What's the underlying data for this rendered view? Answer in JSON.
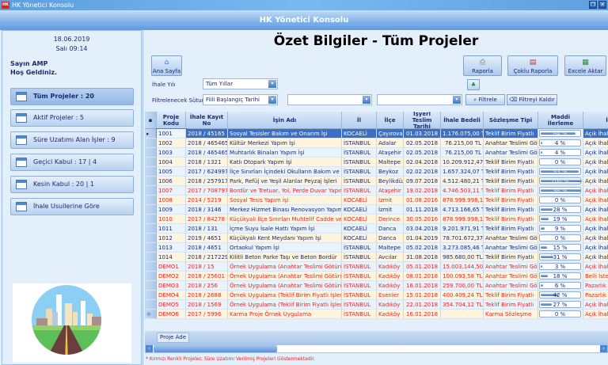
{
  "window": {
    "title": "HK Yönetici Konsolu",
    "app_icon": "HK",
    "header": "HK Yönetici Konsolu"
  },
  "user": {
    "date": "18.06.2019",
    "day_time": "Salı  09:14",
    "greeting1": "Sayın AMP",
    "greeting2": "Hoş Geldiniz."
  },
  "sidebar": {
    "items": [
      {
        "label": "Tüm Projeler : 20",
        "icon": "search-window-icon",
        "selected": true
      },
      {
        "label": "Aktif Projeler : 5",
        "icon": "new-window-icon"
      },
      {
        "label": "Süre Uzatımı Alan İşler : 9",
        "icon": "window-icon"
      },
      {
        "label": "Geçici Kabul : 17 | 4",
        "icon": "window-badge-icon"
      },
      {
        "label": "Kesin Kabul : 20 | 1",
        "icon": "window-check-icon"
      },
      {
        "label": "İhale Usullerine Göre",
        "icon": "windows-stack-icon"
      }
    ]
  },
  "page": {
    "title": "Özet Bilgiler - Tüm Projeler"
  },
  "toolbar": {
    "home": "Ana Sayfa",
    "report": "Raporla",
    "multi_report": "Çoklu Raporla",
    "excel": "Excele Aktar"
  },
  "filters": {
    "year_label": "İhale Yılı",
    "year_value": "Tüm Yıllar",
    "column_label": "Filtrelenecek Sütun",
    "column_value": "Fiili Başlangıç Tarihi",
    "value1": "",
    "value2": "",
    "filter": "Filtrele",
    "clear": "Filtreyi Kaldır"
  },
  "grid": {
    "columns": [
      "Proje Kodu",
      "İhale Kayıt No",
      "İşin Adı",
      "İl",
      "İlçe",
      "İşyeri Teslim Tarihi",
      "İhale Bedeli",
      "Sözleşme Tipi",
      "Maddi İlerleme",
      "İ"
    ],
    "rows": [
      {
        "red": false,
        "c": [
          "1001",
          "2018 / 45165",
          "Sosyal Tesisler Bakım ve Onarım İşi",
          "KOCAELİ",
          "Çayırova",
          "01.03.2018",
          "1.176.075,00 TL",
          "Teklif Birim Fiyatlı",
          "Açık İhale"
        ],
        "p": 84
      },
      {
        "red": false,
        "c": [
          "1002",
          "2018 / 465465",
          "Kültür Merkezi Yapım İşi",
          "İSTANBUL",
          "Adalar",
          "02.05.2018",
          "76.215,00 TL",
          "Anahtar Teslimi Götürü",
          "Açık İhale"
        ],
        "p": 4
      },
      {
        "red": false,
        "c": [
          "1003",
          "2018 / 465465",
          "Muhtarlık Binaları Yapım İşi",
          "İSTANBUL",
          "Ataşehir",
          "02.05.2018",
          "76.215,00 TL",
          "Anahtar Teslimi Götürü",
          "Açık İhale"
        ],
        "p": 4
      },
      {
        "red": false,
        "c": [
          "1004",
          "2018 / 1321",
          "Katlı Otopark Yapım İşi",
          "İSTANBUL",
          "Maltepe",
          "02.04.2018",
          "10.209.912,47 TL",
          "Teklif Birim Fiyatlı",
          "Açık İhale"
        ],
        "p": 0
      },
      {
        "red": false,
        "c": [
          "1005",
          "2017 / 624997",
          "İlçe Sınırları İçindeki Okulların Bakım ve",
          "İSTANBUL",
          "Beykoz",
          "02.02.2018",
          "1.657.324,07 TL",
          "Teklif Birim Fiyatlı",
          "Açık İhale"
        ],
        "p": 93
      },
      {
        "red": false,
        "c": [
          "1006",
          "2018 / 257917",
          "Park, Refüj ve Yeşil Alanlar Peyzaj İşleri",
          "İSTANBUL",
          "Beylikdüz",
          "09.07.2018",
          "4.512.480,21 TL",
          "Teklif Birim Fiyatlı",
          "Açık İhale"
        ],
        "p": 100
      },
      {
        "red": true,
        "c": [
          "1007",
          "2017 / 708797",
          "Bordür ve Tretuar, Yol, Perde Duvar Yapım İşi",
          "İSTANBUL",
          "Ataşehir",
          "19.02.2018",
          "4.746.503,11 TL",
          "Teklif Birim Fiyatlı",
          "Açık İhale"
        ],
        "p": 98
      },
      {
        "red": true,
        "c": [
          "1008",
          "2014 / 5219",
          "Sosyal Tesis Yapım İşi",
          "KOCAELİ",
          "İzmit",
          "01.08.2016",
          "878.999.998,10 TL",
          "Teklif Birim Fiyatlı",
          "Açık İhale"
        ],
        "p": 0
      },
      {
        "red": false,
        "c": [
          "1009",
          "2018 / 3146",
          "Merkez Hizmet Binası Renovasyon Yapım İşi",
          "KOCAELİ",
          "İzmit",
          "01.11.2018",
          "4.713.166,65 TL",
          "Teklif Birim Fiyatlı",
          "Açık İhale"
        ],
        "p": 28
      },
      {
        "red": true,
        "c": [
          "1010",
          "2017 / 84278",
          "Küçükyalı İlçe Sınırları Muhtelif Cadde ve",
          "KOCAELİ",
          "Derince",
          "30.05.2016",
          "878.999.998,10 TL",
          "Teklif Birim Fiyatlı",
          "Açık İhale"
        ],
        "p": 19
      },
      {
        "red": false,
        "c": [
          "1011",
          "2018 / 131",
          "İçme Suyu İsale Hattı Yapım İşi",
          "KOCAELİ",
          "Danca",
          "03.04.2018",
          "9.201.971,91 TL",
          "Teklif Birim Fiyatlı",
          "Açık İhale"
        ],
        "p": 9
      },
      {
        "red": false,
        "c": [
          "1012",
          "2019 / 4651",
          "Küçükyalı Kent Meydanı Yapım İşi",
          "KOCAELİ",
          "Danca",
          "01.04.2019",
          "78.701.672,37 TL",
          "Anahtar Teslimi Götürü",
          "Açık İhale"
        ],
        "p": 0
      },
      {
        "red": false,
        "c": [
          "1013",
          "2018 / 4651",
          "Ortaokul Yapım İşi",
          "İSTANBUL",
          "Maltepe",
          "05.02.2018",
          "3.273.085,46 TL",
          "Anahtar Teslimi Götürü",
          "Açık İhale"
        ],
        "p": 15
      },
      {
        "red": false,
        "c": [
          "1014",
          "2018 / 217229",
          "Kilitli Beton Parke Taşı ve Beton Bordür",
          "İSTANBUL",
          "Avcılar",
          "31.08.2018",
          "985.680,00 TL",
          "Teklif Birim Fiyatlı",
          "Açık İhale"
        ],
        "p": 31
      },
      {
        "red": true,
        "c": [
          "DEMO1",
          "2018 / 15",
          "Örnek Uygulama (Anahtar Teslimi Götürü",
          "İSTANBUL",
          "Kadıköy",
          "05.01.2018",
          "15.003.144,50 TL",
          "Anahtar Teslimi Götürü",
          "Açık İhale"
        ],
        "p": 3
      },
      {
        "red": true,
        "c": [
          "DEMO2",
          "2018 / 25601",
          "Örnek Uygulama (Anahtar Teslimi Götürü",
          "İSTANBUL",
          "Kadıköy",
          "08.01.2018",
          "100.093,58 TL",
          "Anahtar Teslimi Götürü",
          "Belli İstekliler"
        ],
        "p": 18
      },
      {
        "red": true,
        "c": [
          "DEMO3",
          "2018 / 256",
          "Örnek Uygulama (Anahtar Teslimi Götürü",
          "İSTANBUL",
          "Kadıköy",
          "16.01.2018",
          "259.700,00 TL",
          "Anahtar Teslimi Götürü",
          "Pazarlık Usulü"
        ],
        "p": 6
      },
      {
        "red": true,
        "c": [
          "DEMO4",
          "2018 / 2688",
          "Örnek Uygulama (Teklif Birim Fiyatlı İşler",
          "İSTANBUL",
          "Esenler",
          "15.01.2018",
          "400.409,24 TL",
          "Teklif Birim Fiyatlı",
          "Pazarlık Usulü"
        ],
        "p": 42
      },
      {
        "red": true,
        "c": [
          "DEMO5",
          "2018 / 1569",
          "Örnek Uygulama (Teklif Birim Fiyatlı İşler",
          "İSTANBUL",
          "Kadıköy",
          "22.01.2018",
          "354.704,12 TL",
          "Teklif Birim Fiyatlı",
          "Açık İhale"
        ],
        "p": 27
      },
      {
        "red": true,
        "c": [
          "DEMO6",
          "2017 / 5996",
          "Karma Proje Örnek Uygulama",
          "İSTANBUL",
          "Kadıköy",
          "16.01.2018",
          "",
          "Karma Sözleşme",
          "Açık İhale"
        ],
        "p": 0
      }
    ],
    "group_tab": "Proje Ade"
  },
  "footnote": "* Kırmızı Renkli Projeler; Süre Uzatımı Verilmiş Projeleri Göstermektedir.",
  "colors": {
    "red_text": "#e8262a",
    "normal_text": "#1e2a6e",
    "selected_row": "#3a6fc4",
    "row_odd": "#e9f3fb",
    "row_even": "#fff5dc"
  }
}
